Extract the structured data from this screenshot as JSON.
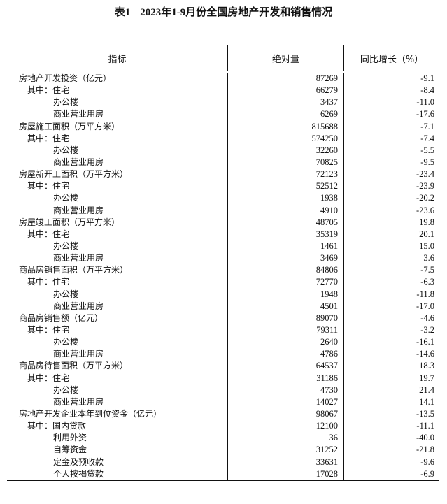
{
  "title": {
    "table_no": "表1",
    "text": "2023年1-9月份全国房地产开发和销售情况"
  },
  "headers": [
    "指标",
    "绝对量",
    "同比增长（%）"
  ],
  "rows": [
    {
      "label": "房地产开发投资（亿元）",
      "level": 0,
      "value": "87269",
      "growth": "-9.1"
    },
    {
      "label": "其中：住宅",
      "level": 1,
      "value": "66279",
      "growth": "-8.4"
    },
    {
      "label": "办公楼",
      "level": 2,
      "value": "3437",
      "growth": "-11.0"
    },
    {
      "label": "商业营业用房",
      "level": 2,
      "value": "6269",
      "growth": "-17.6"
    },
    {
      "label": "房屋施工面积（万平方米）",
      "level": 0,
      "value": "815688",
      "growth": "-7.1"
    },
    {
      "label": "其中：住宅",
      "level": 1,
      "value": "574250",
      "growth": "-7.4"
    },
    {
      "label": "办公楼",
      "level": 2,
      "value": "32260",
      "growth": "-5.5"
    },
    {
      "label": "商业营业用房",
      "level": 2,
      "value": "70825",
      "growth": "-9.5"
    },
    {
      "label": "房屋新开工面积（万平方米）",
      "level": 0,
      "value": "72123",
      "growth": "-23.4"
    },
    {
      "label": "其中：住宅",
      "level": 1,
      "value": "52512",
      "growth": "-23.9"
    },
    {
      "label": "办公楼",
      "level": 2,
      "value": "1938",
      "growth": "-20.2"
    },
    {
      "label": "商业营业用房",
      "level": 2,
      "value": "4910",
      "growth": "-23.6"
    },
    {
      "label": "房屋竣工面积（万平方米）",
      "level": 0,
      "value": "48705",
      "growth": "19.8"
    },
    {
      "label": "其中：住宅",
      "level": 1,
      "value": "35319",
      "growth": "20.1"
    },
    {
      "label": "办公楼",
      "level": 2,
      "value": "1461",
      "growth": "15.0"
    },
    {
      "label": "商业营业用房",
      "level": 2,
      "value": "3469",
      "growth": "3.6"
    },
    {
      "label": "商品房销售面积（万平方米）",
      "level": 0,
      "value": "84806",
      "growth": "-7.5"
    },
    {
      "label": "其中：住宅",
      "level": 1,
      "value": "72770",
      "growth": "-6.3"
    },
    {
      "label": "办公楼",
      "level": 2,
      "value": "1948",
      "growth": "-11.8"
    },
    {
      "label": "商业营业用房",
      "level": 2,
      "value": "4501",
      "growth": "-17.0"
    },
    {
      "label": "商品房销售额（亿元）",
      "level": 0,
      "value": "89070",
      "growth": "-4.6"
    },
    {
      "label": "其中：住宅",
      "level": 1,
      "value": "79311",
      "growth": "-3.2"
    },
    {
      "label": "办公楼",
      "level": 2,
      "value": "2640",
      "growth": "-16.1"
    },
    {
      "label": "商业营业用房",
      "level": 2,
      "value": "4786",
      "growth": "-14.6"
    },
    {
      "label": "商品房待售面积（万平方米）",
      "level": 0,
      "value": "64537",
      "growth": "18.3"
    },
    {
      "label": "其中：住宅",
      "level": 1,
      "value": "31186",
      "growth": "19.7"
    },
    {
      "label": "办公楼",
      "level": 2,
      "value": "4730",
      "growth": "21.4"
    },
    {
      "label": "商业营业用房",
      "level": 2,
      "value": "14027",
      "growth": "14.1"
    },
    {
      "label": "房地产开发企业本年到位资金（亿元）",
      "level": 0,
      "value": "98067",
      "growth": "-13.5"
    },
    {
      "label": "其中：国内贷款",
      "level": 1,
      "value": "12100",
      "growth": "-11.1"
    },
    {
      "label": "利用外资",
      "level": 2,
      "value": "36",
      "growth": "-40.0"
    },
    {
      "label": "自筹资金",
      "level": 2,
      "value": "31252",
      "growth": "-21.8"
    },
    {
      "label": "定金及预收款",
      "level": 2,
      "value": "33631",
      "growth": "-9.6"
    },
    {
      "label": "个人按揭贷款",
      "level": 2,
      "value": "17028",
      "growth": "-6.9"
    }
  ]
}
